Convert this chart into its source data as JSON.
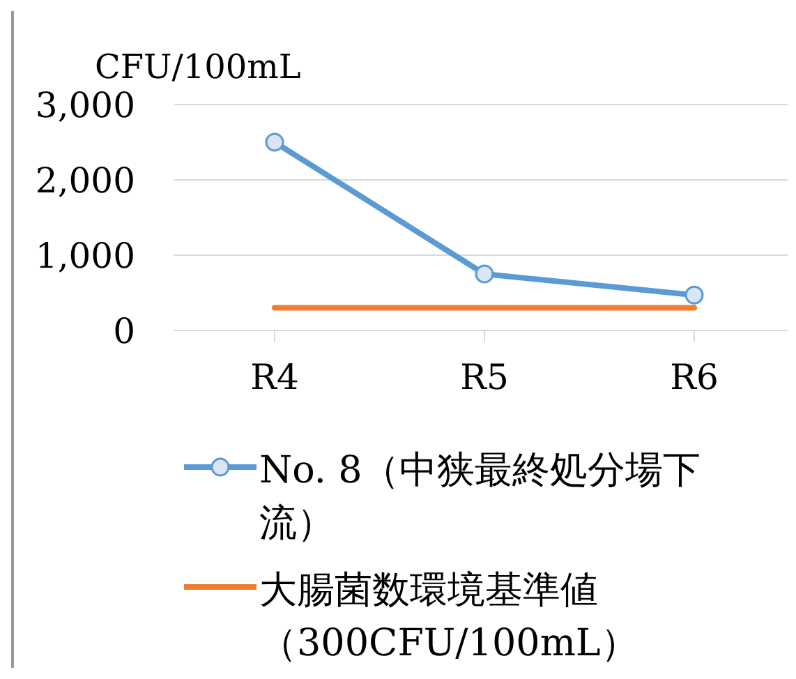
{
  "chart_data": {
    "type": "line",
    "ylabel": "CFU/100mL",
    "categories": [
      "R4",
      "R5",
      "R6"
    ],
    "series": [
      {
        "name": "No. 8（中狭最終処分場下流）",
        "color": "#5b9bd5",
        "values": [
          2500,
          750,
          470
        ],
        "marker": "circle"
      },
      {
        "name": "大腸菌数環境基準値（300CFU/100mL）",
        "color": "#ed7d31",
        "values": [
          300,
          300,
          300
        ],
        "marker": "none"
      }
    ],
    "ylim": [
      0,
      3000
    ],
    "yticks": [
      {
        "value": 0,
        "label": "0"
      },
      {
        "value": 1000,
        "label": "1,000"
      },
      {
        "value": 2000,
        "label": "2,000"
      },
      {
        "value": 3000,
        "label": "3,000"
      }
    ],
    "grid": "y",
    "legend": "bottom"
  }
}
